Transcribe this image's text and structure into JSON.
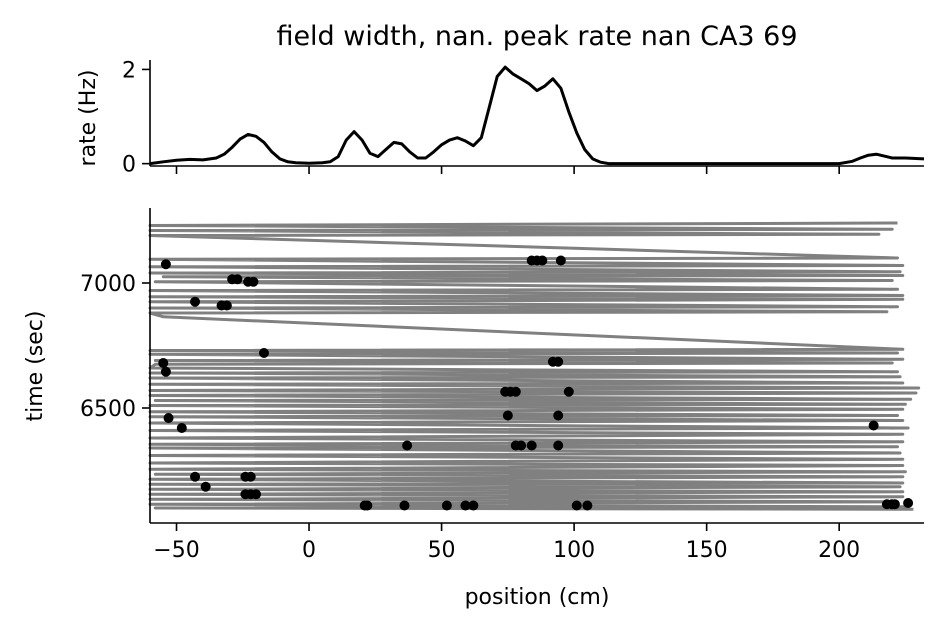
{
  "chart_data": [
    {
      "type": "line",
      "title": "field width, nan. peak rate nan CA3 69",
      "xlabel": "",
      "ylabel": "rate (Hz)",
      "xlim": [
        -60,
        232
      ],
      "ylim": [
        -0.05,
        2.2
      ],
      "yticks": [
        0,
        2
      ],
      "ytick_labels": [
        "0",
        "2"
      ],
      "xticks": [
        -50,
        0,
        50,
        100,
        150,
        200
      ],
      "line_color": "#000000",
      "series": [
        {
          "name": "rate",
          "x": [
            -60,
            -55,
            -50,
            -45,
            -40,
            -35,
            -32,
            -29,
            -26,
            -23,
            -20,
            -17,
            -14,
            -11,
            -8,
            -5,
            0,
            5,
            8,
            11,
            14,
            17,
            20,
            23,
            26,
            29,
            32,
            35,
            38,
            41,
            44,
            47,
            50,
            53,
            56,
            59,
            62,
            65,
            68,
            71,
            74,
            77,
            80,
            83,
            86,
            89,
            92,
            95,
            98,
            101,
            104,
            107,
            110,
            113,
            116,
            120,
            130,
            150,
            170,
            190,
            200,
            205,
            208,
            211,
            214,
            217,
            220,
            225,
            232
          ],
          "y": [
            0.0,
            0.04,
            0.07,
            0.09,
            0.08,
            0.12,
            0.2,
            0.35,
            0.52,
            0.62,
            0.58,
            0.45,
            0.25,
            0.1,
            0.04,
            0.02,
            0.01,
            0.02,
            0.04,
            0.15,
            0.5,
            0.68,
            0.5,
            0.22,
            0.15,
            0.3,
            0.45,
            0.42,
            0.25,
            0.12,
            0.12,
            0.25,
            0.4,
            0.5,
            0.55,
            0.48,
            0.38,
            0.55,
            1.2,
            1.85,
            2.05,
            1.9,
            1.8,
            1.7,
            1.55,
            1.65,
            1.8,
            1.6,
            1.1,
            0.65,
            0.3,
            0.1,
            0.03,
            0.0,
            0.0,
            0.0,
            0.0,
            0.0,
            0.0,
            0.0,
            0.0,
            0.05,
            0.12,
            0.18,
            0.2,
            0.16,
            0.12,
            0.12,
            0.1
          ]
        }
      ]
    },
    {
      "type": "scatter",
      "title": "",
      "xlabel": "position (cm)",
      "ylabel": "time (sec)",
      "xlim": [
        -60,
        232
      ],
      "ylim": [
        6040,
        7300
      ],
      "xticks": [
        -50,
        0,
        50,
        100,
        150,
        200
      ],
      "xtick_labels": [
        "−50",
        "0",
        "50",
        "100",
        "150",
        "200"
      ],
      "yticks": [
        6500,
        7000
      ],
      "ytick_labels": [
        "6500",
        "7000"
      ],
      "trajectory_color": "#808080",
      "spike_color": "#000000",
      "trajectory_turns": [
        {
          "t": 7240,
          "x": 222
        },
        {
          "t": 7230,
          "x": -60
        },
        {
          "t": 7215,
          "x": 220
        },
        {
          "t": 7210,
          "x": -60
        },
        {
          "t": 7195,
          "x": 215
        },
        {
          "t": 7190,
          "x": -60
        },
        {
          "t": 7100,
          "x": 222
        },
        {
          "t": 7095,
          "x": -60
        },
        {
          "t": 7070,
          "x": 224
        },
        {
          "t": 7065,
          "x": -60
        },
        {
          "t": 7045,
          "x": 223
        },
        {
          "t": 7040,
          "x": -60
        },
        {
          "t": 7030,
          "x": 224
        },
        {
          "t": 7025,
          "x": -55
        },
        {
          "t": 7010,
          "x": 220
        },
        {
          "t": 7005,
          "x": -58
        },
        {
          "t": 6975,
          "x": 222
        },
        {
          "t": 6970,
          "x": -60
        },
        {
          "t": 6950,
          "x": 224
        },
        {
          "t": 6945,
          "x": -60
        },
        {
          "t": 6935,
          "x": 224
        },
        {
          "t": 6925,
          "x": -60
        },
        {
          "t": 6905,
          "x": 222
        },
        {
          "t": 6900,
          "x": -60
        },
        {
          "t": 6885,
          "x": 218
        },
        {
          "t": 6880,
          "x": -60
        },
        {
          "t": 6865,
          "x": -55
        },
        {
          "t": 6735,
          "x": 224
        },
        {
          "t": 6730,
          "x": -60
        },
        {
          "t": 6720,
          "x": 222
        },
        {
          "t": 6715,
          "x": -60
        },
        {
          "t": 6695,
          "x": 224
        },
        {
          "t": 6690,
          "x": -58
        },
        {
          "t": 6680,
          "x": 220
        },
        {
          "t": 6675,
          "x": -58
        },
        {
          "t": 6660,
          "x": -60
        },
        {
          "t": 6645,
          "x": 222
        },
        {
          "t": 6640,
          "x": -60
        },
        {
          "t": 6625,
          "x": 223
        },
        {
          "t": 6620,
          "x": -60
        },
        {
          "t": 6600,
          "x": 224
        },
        {
          "t": 6595,
          "x": -60
        },
        {
          "t": 6580,
          "x": 230
        },
        {
          "t": 6570,
          "x": -60
        },
        {
          "t": 6560,
          "x": 229
        },
        {
          "t": 6550,
          "x": -60
        },
        {
          "t": 6535,
          "x": 227
        },
        {
          "t": 6530,
          "x": -58
        },
        {
          "t": 6515,
          "x": 225
        },
        {
          "t": 6510,
          "x": -60
        },
        {
          "t": 6495,
          "x": 224
        },
        {
          "t": 6485,
          "x": -60
        },
        {
          "t": 6470,
          "x": 222
        },
        {
          "t": 6465,
          "x": -60
        },
        {
          "t": 6450,
          "x": 224
        },
        {
          "t": 6440,
          "x": -60
        },
        {
          "t": 6420,
          "x": 226
        },
        {
          "t": 6410,
          "x": -60
        },
        {
          "t": 6395,
          "x": 224
        },
        {
          "t": 6380,
          "x": -60
        },
        {
          "t": 6365,
          "x": 224
        },
        {
          "t": 6355,
          "x": -60
        },
        {
          "t": 6345,
          "x": 222
        },
        {
          "t": 6340,
          "x": -60
        },
        {
          "t": 6320,
          "x": 223
        },
        {
          "t": 6310,
          "x": -60
        },
        {
          "t": 6295,
          "x": 224
        },
        {
          "t": 6280,
          "x": -60
        },
        {
          "t": 6270,
          "x": 224
        },
        {
          "t": 6255,
          "x": -60
        },
        {
          "t": 6245,
          "x": 225
        },
        {
          "t": 6235,
          "x": -58
        },
        {
          "t": 6225,
          "x": 224
        },
        {
          "t": 6215,
          "x": -60
        },
        {
          "t": 6200,
          "x": 224
        },
        {
          "t": 6195,
          "x": -60
        },
        {
          "t": 6185,
          "x": 223
        },
        {
          "t": 6175,
          "x": -60
        },
        {
          "t": 6165,
          "x": 224
        },
        {
          "t": 6155,
          "x": -60
        },
        {
          "t": 6145,
          "x": 224
        },
        {
          "t": 6135,
          "x": -60
        },
        {
          "t": 6125,
          "x": 222
        },
        {
          "t": 6115,
          "x": -60
        },
        {
          "t": 6105,
          "x": 226
        },
        {
          "t": 6100,
          "x": -58
        },
        {
          "t": 6095,
          "x": 228
        }
      ],
      "spikes": [
        {
          "x": -54,
          "t": 7075
        },
        {
          "x": -29,
          "t": 7015
        },
        {
          "x": -27,
          "t": 7015
        },
        {
          "x": -23,
          "t": 7005
        },
        {
          "x": -21,
          "t": 7005
        },
        {
          "x": -43,
          "t": 6925
        },
        {
          "x": -33,
          "t": 6910
        },
        {
          "x": -31,
          "t": 6910
        },
        {
          "x": -55,
          "t": 6680
        },
        {
          "x": -54,
          "t": 6645
        },
        {
          "x": -17,
          "t": 6720
        },
        {
          "x": -53,
          "t": 6460
        },
        {
          "x": -48,
          "t": 6420
        },
        {
          "x": -43,
          "t": 6225
        },
        {
          "x": -39,
          "t": 6185
        },
        {
          "x": -24,
          "t": 6225
        },
        {
          "x": -22,
          "t": 6225
        },
        {
          "x": -24,
          "t": 6155
        },
        {
          "x": -22,
          "t": 6155
        },
        {
          "x": -20,
          "t": 6155
        },
        {
          "x": 21,
          "t": 6110
        },
        {
          "x": 22,
          "t": 6110
        },
        {
          "x": 36,
          "t": 6110
        },
        {
          "x": 37,
          "t": 6350
        },
        {
          "x": 52,
          "t": 6110
        },
        {
          "x": 59,
          "t": 6110
        },
        {
          "x": 62,
          "t": 6110
        },
        {
          "x": 74,
          "t": 6565
        },
        {
          "x": 76,
          "t": 6565
        },
        {
          "x": 78,
          "t": 6565
        },
        {
          "x": 75,
          "t": 6470
        },
        {
          "x": 78,
          "t": 6350
        },
        {
          "x": 80,
          "t": 6350
        },
        {
          "x": 84,
          "t": 6350
        },
        {
          "x": 94,
          "t": 6350
        },
        {
          "x": 94,
          "t": 6470
        },
        {
          "x": 98,
          "t": 6565
        },
        {
          "x": 92,
          "t": 6685
        },
        {
          "x": 94,
          "t": 6685
        },
        {
          "x": 84,
          "t": 7090
        },
        {
          "x": 86,
          "t": 7090
        },
        {
          "x": 88,
          "t": 7090
        },
        {
          "x": 95,
          "t": 7090
        },
        {
          "x": 101,
          "t": 6110
        },
        {
          "x": 105,
          "t": 6110
        },
        {
          "x": 213,
          "t": 6430
        },
        {
          "x": 218,
          "t": 6115
        },
        {
          "x": 220,
          "t": 6115
        },
        {
          "x": 221,
          "t": 6115
        },
        {
          "x": 226,
          "t": 6120
        }
      ]
    }
  ]
}
